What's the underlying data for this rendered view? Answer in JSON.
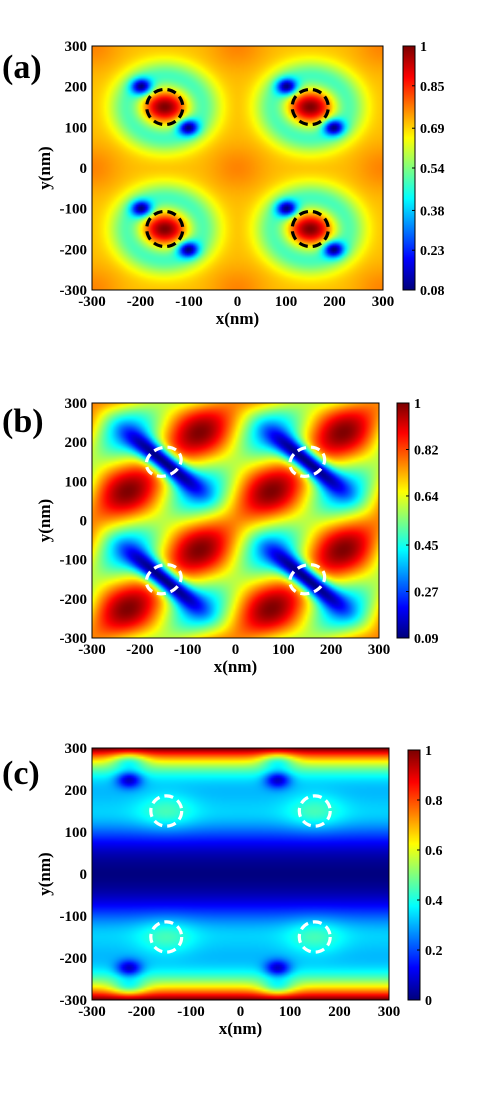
{
  "chart_data": [
    {
      "type": "heatmap",
      "panel_label": "(a)",
      "xlabel": "x(nm)",
      "ylabel": "y(nm)",
      "xlim": [
        -300,
        300
      ],
      "ylim": [
        -300,
        300
      ],
      "xticks": [
        "-300",
        "-200",
        "-100",
        "0",
        "100",
        "200",
        "300"
      ],
      "yticks": [
        "300",
        "200",
        "100",
        "0",
        "-100",
        "-200",
        "-300"
      ],
      "colorbar": {
        "ticks": [
          "1",
          "0.85",
          "0.69",
          "0.54",
          "0.38",
          "0.23",
          "0.08"
        ],
        "range": [
          0.08,
          1
        ]
      },
      "colormap": "jet",
      "markers": {
        "color": "#000000",
        "style": "dashed-ellipse",
        "centers": [
          [
            -150,
            150
          ],
          [
            150,
            150
          ],
          [
            -150,
            -150
          ],
          [
            150,
            -150
          ]
        ]
      }
    },
    {
      "type": "heatmap",
      "panel_label": "(b)",
      "xlabel": "x(nm)",
      "ylabel": "y(nm)",
      "xlim": [
        -300,
        300
      ],
      "ylim": [
        -300,
        300
      ],
      "xticks": [
        "-300",
        "-200",
        "-100",
        "0",
        "100",
        "200",
        "300"
      ],
      "yticks": [
        "300",
        "200",
        "100",
        "0",
        "-100",
        "-200",
        "-300"
      ],
      "colorbar": {
        "ticks": [
          "1",
          "0.82",
          "0.64",
          "0.45",
          "0.27",
          "0.09"
        ],
        "range": [
          0.09,
          1
        ]
      },
      "colormap": "jet",
      "markers": {
        "color": "#ffffff",
        "style": "dashed-ellipse-tilted",
        "centers": [
          [
            -150,
            150
          ],
          [
            150,
            150
          ],
          [
            -150,
            -150
          ],
          [
            150,
            -150
          ]
        ]
      }
    },
    {
      "type": "heatmap",
      "panel_label": "(c)",
      "xlabel": "x(nm)",
      "ylabel": "y(nm)",
      "xlim": [
        -300,
        300
      ],
      "ylim": [
        -300,
        300
      ],
      "xticks": [
        "-300",
        "-200",
        "-100",
        "0",
        "100",
        "200",
        "300"
      ],
      "yticks": [
        "300",
        "200",
        "100",
        "0",
        "-100",
        "-200",
        "-300"
      ],
      "colorbar": {
        "ticks": [
          "1",
          "0.8",
          "0.6",
          "0.4",
          "0.2",
          "0"
        ],
        "range": [
          0,
          1
        ]
      },
      "colormap": "jet",
      "markers": {
        "color": "#ffffff",
        "style": "dashed-ellipse",
        "centers": [
          [
            -150,
            150
          ],
          [
            150,
            150
          ],
          [
            -150,
            -150
          ],
          [
            150,
            -150
          ]
        ]
      }
    }
  ]
}
